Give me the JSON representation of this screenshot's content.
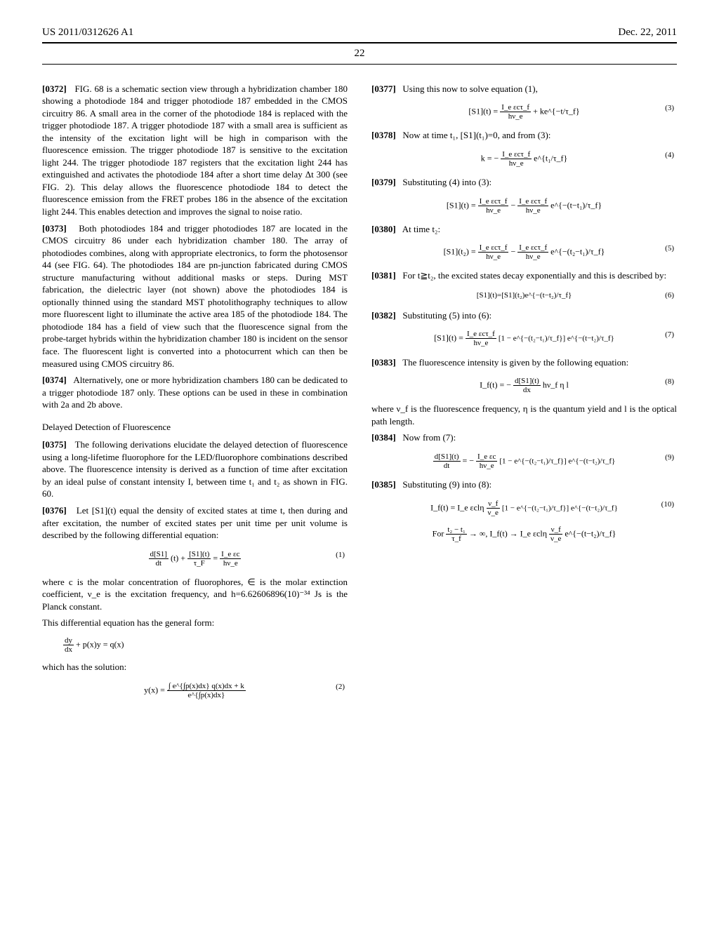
{
  "header": {
    "left": "US 2011/0312626 A1",
    "right": "Dec. 22, 2011",
    "pagenum": "22"
  },
  "left_col": {
    "p0372_num": "[0372]",
    "p0372": "FIG. 68 is a schematic section view through a hybridization chamber 180 showing a photodiode 184 and trigger photodiode 187 embedded in the CMOS circuitry 86. A small area in the corner of the photodiode 184 is replaced with the trigger photodiode 187. A trigger photodiode 187 with a small area is sufficient as the intensity of the excitation light will be high in comparison with the fluorescence emission. The trigger photodiode 187 is sensitive to the excitation light 244. The trigger photodiode 187 registers that the excitation light 244 has extinguished and activates the photodiode 184 after a short time delay Δt 300 (see FIG. 2). This delay allows the fluorescence photodiode 184 to detect the fluorescence emission from the FRET probes 186 in the absence of the excitation light 244. This enables detection and improves the signal to noise ratio.",
    "p0373_num": "[0373]",
    "p0373": "Both photodiodes 184 and trigger photodiodes 187 are located in the CMOS circuitry 86 under each hybridization chamber 180. The array of photodiodes combines, along with appropriate electronics, to form the photosensor 44 (see FIG. 64). The photodiodes 184 are pn-junction fabricated during CMOS structure manufacturing without additional masks or steps. During MST fabrication, the dielectric layer (not shown) above the photodiodes 184 is optionally thinned using the standard MST photolithography techniques to allow more fluorescent light to illuminate the active area 185 of the photodiode 184. The photodiode 184 has a field of view such that the fluorescence signal from the probe-target hybrids within the hybridization chamber 180 is incident on the sensor face. The fluorescent light is converted into a photocurrent which can then be measured using CMOS circuitry 86.",
    "p0374_num": "[0374]",
    "p0374": "Alternatively, one or more hybridization chambers 180 can be dedicated to a trigger photodiode 187 only. These options can be used in these in combination with 2a and 2b above.",
    "section": "Delayed Detection of Fluorescence",
    "p0375_num": "[0375]",
    "p0375": "The following derivations elucidate the delayed detection of fluorescence using a long-lifetime fluorophore for the LED/fluorophore combinations described above. The fluorescence intensity is derived as a function of time after excitation by an ideal pulse of constant intensity I, between time t₁ and t₂ as shown in FIG. 60.",
    "p0376_num": "[0376]",
    "p0376": "Let [S1](t) equal the density of excited states at time t, then during and after excitation, the number of excited states per unit time per unit volume is described by the following differential equation:",
    "eq1_lhs_num": "d[S1]",
    "eq1_lhs_den": "dt",
    "eq1_mid": "(t) +",
    "eq1_mid2_num": "[S1](t)",
    "eq1_mid2_den": "τ_F",
    "eq1_eq": "=",
    "eq1_rhs_num": "I_e εc",
    "eq1_rhs_den": "hν_e",
    "eq1_num": "(1)",
    "where1": "where c is the molar concentration of fluorophores, ∈ is the molar extinction coefficient, ν_e is the excitation frequency, and h=6.62606896(10)⁻³⁴ Js is the Planck constant.",
    "where2": "This differential equation has the general form:",
    "eq_gen_lhs_num": "dy",
    "eq_gen_lhs_den": "dx",
    "eq_gen_rest": "+ p(x)y = q(x)",
    "where3": "which has the solution:",
    "eq2_lhs": "y(x) =",
    "eq2_num_f": "∫ e^{∫p(x)dx} q(x)dx + k",
    "eq2_den_f": "e^{∫p(x)dx}",
    "eq2_num": "(2)"
  },
  "right_col": {
    "p0377_num": "[0377]",
    "p0377": "Using this now to solve equation (1),",
    "eq3_lhs": "[S1](t) =",
    "eq3_t1_num": "I_e εcτ_f",
    "eq3_t1_den": "hν_e",
    "eq3_plus": "+ ke^{−t/τ_f}",
    "eq3_num": "(3)",
    "p0378_num": "[0378]",
    "p0378": "Now at time t₁, [S1](t₁)=0, and from (3):",
    "eq4_lhs": "k = −",
    "eq4_num_f": "I_e εcτ_f",
    "eq4_den_f": "hν_e",
    "eq4_exp": "e^{t₁/τ_f}",
    "eq4_num": "(4)",
    "p0379_num": "[0379]",
    "p0379": "Substituting (4) into (3):",
    "eq5a_lhs": "[S1](t) =",
    "eq5a_t1_num": "I_e εcτ_f",
    "eq5a_t1_den": "hν_e",
    "eq5a_minus": "−",
    "eq5a_t2_num": "I_e εcτ_f",
    "eq5a_t2_den": "hν_e",
    "eq5a_exp": "e^{−(t−t₁)/τ_f}",
    "p0380_num": "[0380]",
    "p0380": "At time t₂:",
    "eq5_lhs": "[S1](t₂) =",
    "eq5_t1_num": "I_e εcτ_f",
    "eq5_t1_den": "hν_e",
    "eq5_minus": "−",
    "eq5_t2_num": "I_e εcτ_f",
    "eq5_t2_den": "hν_e",
    "eq5_exp": "e^{−(t₂−t₁)/τ_f}",
    "eq5_num": "(5)",
    "p0381_num": "[0381]",
    "p0381": "For t≧t₂, the excited states decay exponentially and this is described by:",
    "eq6": "[S1](t)=[S1](t₂)e^{−(t−t₂)/τ_f}",
    "eq6_num": "(6)",
    "p0382_num": "[0382]",
    "p0382": "Substituting (5) into (6):",
    "eq7_lhs": "[S1](t) =",
    "eq7_num_f": "I_e εcτ_f",
    "eq7_den_f": "hν_e",
    "eq7_brack": "[1 − e^{−(t₂−t₁)/τ_f}] e^{−(t−t₂)/τ_f}",
    "eq7_num": "(7)",
    "p0383_num": "[0383]",
    "p0383": "The fluorescence intensity is given by the following equation:",
    "eq8_lhs": "I_f(t) = −",
    "eq8_num_f": "d[S1](t)",
    "eq8_den_f": "dx",
    "eq8_rest": "hν_f η l",
    "eq8_num": "(8)",
    "where4": "where ν_f is the fluorescence frequency, η is the quantum yield and l is the optical path length.",
    "p0384_num": "[0384]",
    "p0384": "Now from (7):",
    "eq9_lhs_num": "d[S1](t)",
    "eq9_lhs_den": "dt",
    "eq9_eq": "= −",
    "eq9_rhs_num": "I_e εc",
    "eq9_rhs_den": "hν_e",
    "eq9_brack": "[1 − e^{−(t₂−t₁)/τ_f}] e^{−(t−t₂)/τ_f}",
    "eq9_num": "(9)",
    "p0385_num": "[0385]",
    "p0385": "Substituting (9) into (8):",
    "eq10_lhs": "I_f(t) = I_e εclη",
    "eq10_num_f": "ν_f",
    "eq10_den_f": "ν_e",
    "eq10_brack": "[1 − e^{−(t₂−t₁)/τ_f}] e^{−(t−t₂)/τ_f}",
    "eq10_num": "(10)",
    "eq10b_for": "For",
    "eq10b_num_f": "t₂ − t₁",
    "eq10b_den_f": "τ_f",
    "eq10b_arrow": "→ ∞,   I_f(t) → I_e εclη",
    "eq10b_num2_f": "ν_f",
    "eq10b_den2_f": "ν_e",
    "eq10b_exp": "e^{−(t−t₂)/τ_f}"
  }
}
